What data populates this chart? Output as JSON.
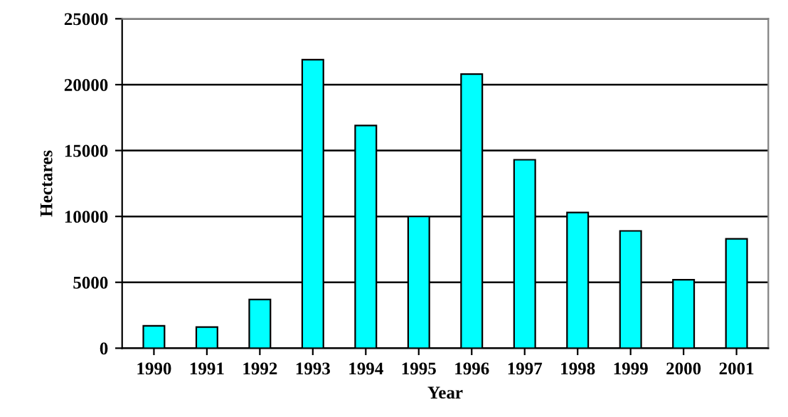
{
  "chart_data": {
    "type": "bar",
    "xlabel": "Year",
    "ylabel": "Hectares",
    "categories": [
      "1990",
      "1991",
      "1992",
      "1993",
      "1994",
      "1995",
      "1996",
      "1997",
      "1998",
      "1999",
      "2000",
      "2001"
    ],
    "values": [
      1700,
      1600,
      3700,
      21900,
      16900,
      10000,
      20800,
      14300,
      10300,
      8900,
      5200,
      8300
    ],
    "color": "#00ffff",
    "ylim": [
      0,
      25000
    ],
    "yticks": [
      0,
      5000,
      10000,
      15000,
      20000,
      25000
    ],
    "grid": "y",
    "legend": false
  }
}
